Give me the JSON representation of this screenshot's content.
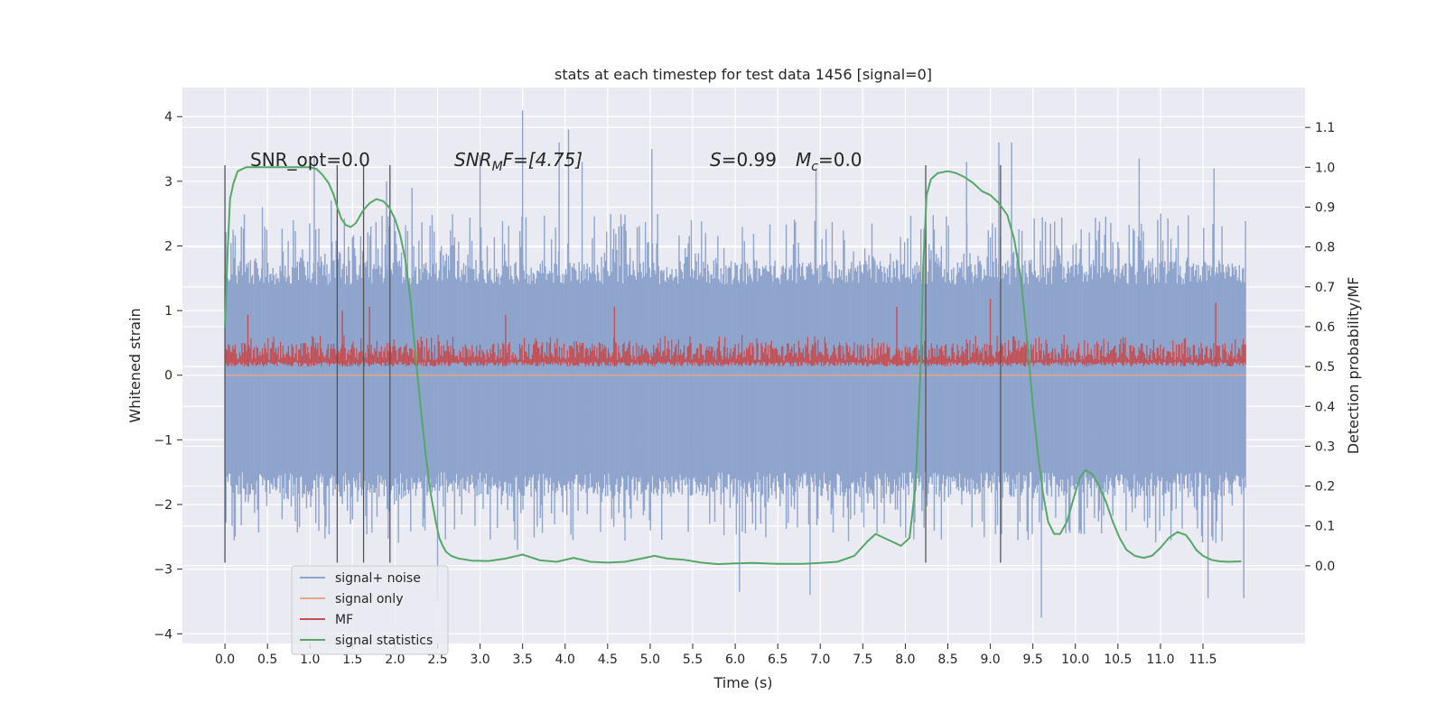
{
  "chart_data": {
    "type": "line",
    "title": "stats at each timestep for test data 1456 [signal=0]",
    "xlabel": "Time (s)",
    "ylabel_left": "Whitened strain",
    "ylabel_right": "Detection probability/MF",
    "xlim": [
      -0.5,
      12.7
    ],
    "ylim_left": [
      -4.15,
      4.45
    ],
    "ylim_right": [
      -0.195,
      1.2
    ],
    "x_ticks": [
      0.0,
      0.5,
      1.0,
      1.5,
      2.0,
      2.5,
      3.0,
      3.5,
      4.0,
      4.5,
      5.0,
      5.5,
      6.0,
      6.5,
      7.0,
      7.5,
      8.0,
      8.5,
      9.0,
      9.5,
      10.0,
      10.5,
      11.0,
      11.5
    ],
    "x_tick_labels": [
      "0.0",
      "0.5",
      "1.0",
      "1.5",
      "2.0",
      "2.5",
      "3.0",
      "3.5",
      "4.0",
      "4.5",
      "5.0",
      "5.5",
      "6.0",
      "6.5",
      "7.0",
      "7.5",
      "8.0",
      "8.5",
      "9.0",
      "9.5",
      "10.0",
      "10.5",
      "11.0",
      "11.5"
    ],
    "y_left_ticks": [
      -4,
      -3,
      -2,
      -1,
      0,
      1,
      2,
      3,
      4
    ],
    "y_left_tick_labels": [
      "−4",
      "−3",
      "−2",
      "−1",
      "0",
      "1",
      "2",
      "3",
      "4"
    ],
    "y_right_ticks": [
      0.0,
      0.1,
      0.2,
      0.3,
      0.4,
      0.5,
      0.6,
      0.7,
      0.8,
      0.9,
      1.0,
      1.1
    ],
    "y_right_tick_labels": [
      "0.0",
      "0.1",
      "0.2",
      "0.3",
      "0.4",
      "0.5",
      "0.6",
      "0.7",
      "0.8",
      "0.9",
      "1.0",
      "1.1"
    ],
    "grid": true,
    "legend_placement": "lower-left",
    "annotations": {
      "snr_opt": "SNR_opt=0.0",
      "snr_mf_main": "SNR",
      "snr_mf_sub": "M",
      "snr_mf_rest": "F=[4.75]",
      "s_label": "S",
      "s_value": "=0.99",
      "mc_main": "M",
      "mc_sub": "c",
      "mc_value": "=0.0"
    },
    "vertical_markers_x": [
      0.0,
      1.32,
      1.63,
      1.94,
      8.24,
      9.12
    ],
    "vertical_marker_range_left": [
      -2.9,
      3.25
    ],
    "series": [
      {
        "name": "signal+ noise",
        "color": "#8fa4cc",
        "axis": "left",
        "style": "noise band",
        "x_range": [
          0.0,
          12.0
        ],
        "core_range": [
          -1.5,
          1.4
        ],
        "typical_peaks": [
          -2.6,
          2.5
        ],
        "spikes": [
          [
            0.44,
            2.6
          ],
          [
            1.05,
            3.4
          ],
          [
            1.25,
            2.7
          ],
          [
            1.9,
            3.0
          ],
          [
            2.2,
            2.9
          ],
          [
            2.5,
            -3.5
          ],
          [
            3.0,
            3.4
          ],
          [
            3.44,
            -2.7
          ],
          [
            3.5,
            4.1
          ],
          [
            3.93,
            3.6
          ],
          [
            4.04,
            3.8
          ],
          [
            4.2,
            3.3
          ],
          [
            5.02,
            3.5
          ],
          [
            6.05,
            -3.35
          ],
          [
            6.95,
            3.2
          ],
          [
            6.88,
            -3.4
          ],
          [
            8.72,
            3.3
          ],
          [
            9.1,
            3.6
          ],
          [
            9.25,
            3.6
          ],
          [
            9.6,
            -3.75
          ],
          [
            10.75,
            3.35
          ],
          [
            11.56,
            -3.45
          ],
          [
            11.63,
            3.2
          ],
          [
            11.98,
            -3.45
          ]
        ]
      },
      {
        "name": "signal only",
        "color": "#e6a788",
        "axis": "left",
        "x": [
          0.0,
          12.0
        ],
        "y": [
          0.0,
          0.0
        ]
      },
      {
        "name": "MF",
        "color": "#c44e52",
        "axis": "right",
        "style": "noise band",
        "x_range": [
          0.0,
          12.0
        ],
        "baseline": 0.5,
        "typical_top": 0.58,
        "spikes": [
          [
            0.27,
            0.63
          ],
          [
            1.38,
            0.64
          ],
          [
            1.7,
            0.65
          ],
          [
            3.3,
            0.63
          ],
          [
            4.58,
            0.65
          ],
          [
            7.9,
            0.65
          ],
          [
            9.0,
            0.67
          ],
          [
            11.65,
            0.66
          ]
        ]
      },
      {
        "name": "signal statistics",
        "color": "#55a868",
        "axis": "right",
        "x": [
          0.0,
          0.03,
          0.06,
          0.1,
          0.15,
          0.25,
          0.4,
          0.6,
          0.8,
          1.0,
          1.08,
          1.15,
          1.22,
          1.28,
          1.32,
          1.37,
          1.42,
          1.48,
          1.54,
          1.62,
          1.7,
          1.78,
          1.86,
          1.93,
          2.0,
          2.06,
          2.12,
          2.18,
          2.24,
          2.3,
          2.36,
          2.42,
          2.48,
          2.52,
          2.56,
          2.6,
          2.66,
          2.75,
          2.9,
          3.1,
          3.3,
          3.5,
          3.7,
          3.9,
          4.1,
          4.3,
          4.5,
          4.7,
          4.9,
          5.05,
          5.2,
          5.4,
          5.6,
          5.8,
          6.0,
          6.2,
          6.5,
          6.8,
          7.0,
          7.2,
          7.4,
          7.55,
          7.65,
          7.75,
          7.85,
          7.95,
          8.05,
          8.12,
          8.18,
          8.21,
          8.25,
          8.3,
          8.38,
          8.5,
          8.6,
          8.7,
          8.8,
          8.9,
          9.0,
          9.1,
          9.2,
          9.28,
          9.36,
          9.44,
          9.5,
          9.56,
          9.62,
          9.68,
          9.75,
          9.82,
          9.9,
          9.98,
          10.05,
          10.12,
          10.2,
          10.28,
          10.36,
          10.44,
          10.52,
          10.6,
          10.7,
          10.8,
          10.9,
          11.0,
          11.1,
          11.2,
          11.3,
          11.36,
          11.42,
          11.5,
          11.6,
          11.7,
          11.8,
          11.95
        ],
        "y": [
          0.6,
          0.78,
          0.92,
          0.96,
          0.99,
          1.0,
          1.0,
          1.0,
          1.0,
          1.0,
          0.995,
          0.98,
          0.96,
          0.93,
          0.9,
          0.87,
          0.855,
          0.85,
          0.86,
          0.89,
          0.91,
          0.92,
          0.915,
          0.9,
          0.87,
          0.83,
          0.77,
          0.67,
          0.53,
          0.4,
          0.28,
          0.18,
          0.11,
          0.07,
          0.05,
          0.035,
          0.025,
          0.018,
          0.013,
          0.012,
          0.018,
          0.028,
          0.014,
          0.01,
          0.02,
          0.01,
          0.008,
          0.01,
          0.018,
          0.025,
          0.018,
          0.015,
          0.008,
          0.004,
          0.006,
          0.007,
          0.005,
          0.005,
          0.007,
          0.01,
          0.025,
          0.06,
          0.08,
          0.07,
          0.06,
          0.05,
          0.07,
          0.2,
          0.5,
          0.75,
          0.93,
          0.97,
          0.985,
          0.99,
          0.985,
          0.975,
          0.96,
          0.94,
          0.93,
          0.91,
          0.88,
          0.82,
          0.72,
          0.55,
          0.4,
          0.28,
          0.18,
          0.11,
          0.08,
          0.08,
          0.11,
          0.17,
          0.22,
          0.24,
          0.23,
          0.2,
          0.16,
          0.11,
          0.07,
          0.04,
          0.025,
          0.02,
          0.025,
          0.045,
          0.07,
          0.085,
          0.077,
          0.06,
          0.04,
          0.025,
          0.015,
          0.011,
          0.01,
          0.011
        ]
      }
    ]
  }
}
